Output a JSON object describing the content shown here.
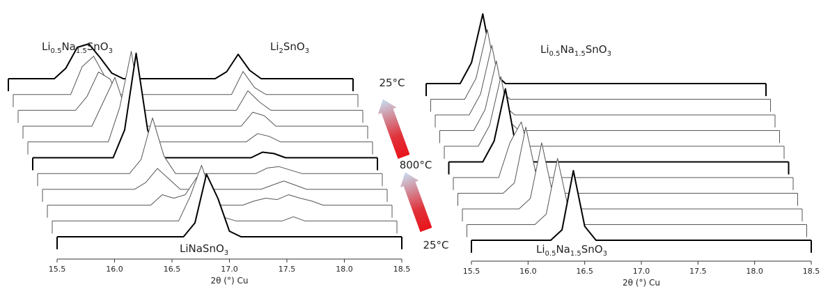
{
  "chart_data": [
    {
      "type": "waterfall",
      "x": [
        15.5,
        15.6,
        15.7,
        15.8,
        15.9,
        16.0,
        16.1,
        16.2,
        16.3,
        16.4,
        16.5,
        16.6,
        16.7,
        16.8,
        16.9,
        17.0,
        17.1,
        17.2,
        17.3,
        17.4,
        17.5,
        17.6,
        17.7,
        17.8,
        17.9,
        18.0,
        18.1,
        18.2,
        18.3,
        18.4,
        18.5
      ],
      "xlim": [
        15.5,
        18.5
      ],
      "xticks": [
        15.5,
        {
          "value": 16,
          "label": "16.0"
        },
        16.5,
        {
          "value": 17,
          "label": "17.0"
        },
        17.5,
        {
          "value": 18,
          "label": "18.0"
        },
        18.5
      ],
      "x_label": "2θ (°) Cu",
      "series": [
        {
          "color": "#000000",
          "line_width": 2,
          "values": [
            0,
            0,
            0,
            0,
            0,
            0,
            0,
            0,
            0,
            0,
            0,
            0,
            20,
            90,
            55,
            8,
            0,
            0,
            0,
            0,
            0,
            0,
            0,
            0,
            0,
            0,
            0,
            0,
            0,
            0,
            0
          ]
        },
        {
          "color": "#555555",
          "line_width": 1,
          "values": [
            0,
            0,
            0,
            0,
            0,
            0,
            0,
            0,
            0,
            0,
            0,
            0,
            35,
            80,
            30,
            5,
            0,
            0,
            0,
            0,
            0,
            6,
            0,
            0,
            0,
            0,
            0,
            0,
            0,
            0,
            0
          ]
        },
        {
          "color": "#555555",
          "line_width": 1,
          "values": [
            0,
            0,
            0,
            0,
            0,
            0,
            0,
            0,
            0,
            0,
            15,
            10,
            15,
            40,
            15,
            0,
            0,
            0,
            6,
            10,
            8,
            15,
            10,
            6,
            0,
            0,
            0,
            0,
            0,
            0,
            0
          ]
        },
        {
          "color": "#555555",
          "line_width": 1,
          "values": [
            0,
            0,
            0,
            0,
            0,
            0,
            0,
            0,
            0,
            10,
            30,
            15,
            0,
            0,
            0,
            0,
            0,
            0,
            0,
            0,
            6,
            12,
            6,
            0,
            0,
            0,
            0,
            0,
            0,
            0,
            0
          ]
        },
        {
          "color": "#555555",
          "line_width": 1,
          "values": [
            0,
            0,
            0,
            0,
            0,
            0,
            0,
            0,
            0,
            20,
            80,
            25,
            0,
            0,
            0,
            0,
            0,
            0,
            0,
            0,
            8,
            10,
            5,
            0,
            0,
            0,
            0,
            0,
            0,
            0,
            0
          ]
        },
        {
          "color": "#000000",
          "line_width": 2,
          "values": [
            0,
            0,
            0,
            0,
            0,
            0,
            0,
            0,
            40,
            150,
            40,
            0,
            0,
            0,
            0,
            0,
            0,
            0,
            0,
            0,
            8,
            6,
            0,
            0,
            0,
            0,
            0,
            0,
            0,
            0,
            0
          ]
        },
        {
          "color": "#555555",
          "line_width": 1,
          "values": [
            0,
            0,
            0,
            0,
            0,
            0,
            0,
            0,
            50,
            130,
            30,
            0,
            0,
            0,
            0,
            0,
            0,
            0,
            0,
            0,
            12,
            8,
            0,
            0,
            0,
            0,
            0,
            0,
            0,
            0,
            0
          ]
        },
        {
          "color": "#555555",
          "line_width": 1,
          "values": [
            0,
            0,
            0,
            0,
            0,
            0,
            0,
            35,
            70,
            20,
            0,
            0,
            0,
            0,
            0,
            0,
            0,
            0,
            0,
            0,
            20,
            15,
            0,
            0,
            0,
            0,
            0,
            0,
            0,
            0,
            0
          ]
        },
        {
          "color": "#555555",
          "line_width": 1,
          "values": [
            0,
            0,
            0,
            0,
            0,
            0,
            20,
            55,
            45,
            10,
            0,
            0,
            0,
            0,
            0,
            0,
            0,
            0,
            0,
            0,
            28,
            12,
            0,
            0,
            0,
            0,
            0,
            0,
            0,
            0,
            0
          ]
        },
        {
          "color": "#555555",
          "line_width": 1,
          "values": [
            0,
            0,
            0,
            0,
            0,
            0,
            40,
            55,
            25,
            0,
            0,
            0,
            0,
            0,
            0,
            0,
            0,
            0,
            0,
            0,
            33,
            10,
            0,
            0,
            0,
            0,
            0,
            0,
            0,
            0,
            0
          ]
        },
        {
          "color": "#000000",
          "line_width": 2,
          "values": [
            0,
            0,
            0,
            0,
            0,
            15,
            45,
            50,
            30,
            8,
            0,
            0,
            0,
            0,
            0,
            0,
            0,
            0,
            0,
            10,
            35,
            12,
            0,
            0,
            0,
            0,
            0,
            0,
            0,
            0,
            0
          ]
        }
      ],
      "annotations": [
        {
          "segments": [
            "Li",
            "0.5",
            "Na",
            "1.5",
            "SnO",
            "3"
          ]
        },
        {
          "segments": [
            "Li",
            "2",
            "SnO",
            "3"
          ]
        },
        {
          "segments": [
            "LiNaSnO",
            "3"
          ]
        }
      ]
    },
    {
      "type": "waterfall",
      "x": [
        15.5,
        15.6,
        15.7,
        15.8,
        15.9,
        16.0,
        16.1,
        16.2,
        16.3,
        16.4,
        16.5,
        16.6,
        16.7,
        16.8,
        16.9,
        17.0,
        17.1,
        17.2,
        17.3,
        17.4,
        17.5,
        17.6,
        17.7,
        17.8,
        17.9,
        18.0,
        18.1,
        18.2,
        18.3,
        18.4,
        18.5
      ],
      "xlim": [
        15.5,
        18.5
      ],
      "xticks": [
        15.5,
        {
          "value": 16,
          "label": "16.0"
        },
        16.5,
        {
          "value": 17,
          "label": "17.0"
        },
        17.5,
        {
          "value": 18,
          "label": "18.0"
        },
        18.5
      ],
      "x_label": "2θ (°) Cu",
      "series": [
        {
          "color": "#000000",
          "line_width": 2,
          "values": [
            0,
            0,
            0,
            0,
            0,
            0,
            0,
            0,
            15,
            100,
            20,
            0,
            0,
            0,
            0,
            0,
            0,
            0,
            0,
            0,
            0,
            0,
            0,
            0,
            0,
            0,
            0,
            0,
            0,
            0,
            0
          ]
        },
        {
          "color": "#555555",
          "line_width": 1,
          "values": [
            0,
            0,
            0,
            0,
            0,
            0,
            0,
            15,
            95,
            20,
            0,
            0,
            0,
            0,
            0,
            0,
            0,
            0,
            0,
            0,
            0,
            0,
            0,
            0,
            0,
            0,
            0,
            0,
            0,
            0,
            0
          ]
        },
        {
          "color": "#555555",
          "line_width": 1,
          "values": [
            0,
            0,
            0,
            0,
            0,
            0,
            15,
            95,
            20,
            0,
            0,
            0,
            0,
            0,
            0,
            0,
            0,
            0,
            0,
            0,
            0,
            0,
            0,
            0,
            0,
            0,
            0,
            0,
            0,
            0,
            0
          ]
        },
        {
          "color": "#555555",
          "line_width": 1,
          "values": [
            0,
            0,
            0,
            0,
            0,
            15,
            95,
            20,
            0,
            0,
            0,
            0,
            0,
            0,
            0,
            0,
            0,
            0,
            0,
            0,
            0,
            0,
            0,
            0,
            0,
            0,
            0,
            0,
            0,
            0,
            0
          ]
        },
        {
          "color": "#555555",
          "line_width": 1,
          "values": [
            0,
            0,
            0,
            0,
            0,
            50,
            80,
            15,
            0,
            0,
            0,
            0,
            0,
            0,
            0,
            0,
            0,
            0,
            0,
            0,
            0,
            0,
            0,
            0,
            0,
            0,
            0,
            0,
            0,
            0,
            0
          ]
        },
        {
          "color": "#000000",
          "line_width": 2,
          "values": [
            0,
            0,
            0,
            0,
            30,
            105,
            15,
            0,
            0,
            0,
            0,
            0,
            0,
            0,
            0,
            0,
            0,
            0,
            0,
            0,
            0,
            0,
            0,
            0,
            0,
            0,
            0,
            0,
            0,
            0,
            0
          ]
        },
        {
          "color": "#555555",
          "line_width": 1,
          "values": [
            0,
            0,
            0,
            0,
            30,
            100,
            15,
            0,
            0,
            0,
            0,
            0,
            0,
            0,
            0,
            0,
            0,
            0,
            0,
            0,
            0,
            0,
            0,
            0,
            0,
            0,
            0,
            0,
            0,
            0,
            0
          ]
        },
        {
          "color": "#555555",
          "line_width": 1,
          "values": [
            0,
            0,
            0,
            0,
            30,
            100,
            15,
            0,
            0,
            0,
            0,
            0,
            0,
            0,
            0,
            0,
            0,
            0,
            0,
            0,
            0,
            0,
            0,
            0,
            0,
            0,
            0,
            0,
            0,
            0,
            0
          ]
        },
        {
          "color": "#555555",
          "line_width": 1,
          "values": [
            0,
            0,
            0,
            0,
            30,
            100,
            15,
            0,
            0,
            0,
            0,
            0,
            0,
            0,
            0,
            0,
            0,
            0,
            0,
            0,
            0,
            0,
            0,
            0,
            0,
            0,
            0,
            0,
            0,
            0,
            0
          ]
        },
        {
          "color": "#555555",
          "line_width": 1,
          "values": [
            0,
            0,
            0,
            0,
            30,
            100,
            15,
            0,
            0,
            0,
            0,
            0,
            0,
            0,
            0,
            0,
            0,
            0,
            0,
            0,
            0,
            0,
            0,
            0,
            0,
            0,
            0,
            0,
            0,
            0,
            0
          ]
        },
        {
          "color": "#000000",
          "line_width": 2,
          "values": [
            0,
            0,
            0,
            0,
            30,
            100,
            15,
            0,
            0,
            0,
            0,
            0,
            0,
            0,
            0,
            0,
            0,
            0,
            0,
            0,
            0,
            0,
            0,
            0,
            0,
            0,
            0,
            0,
            0,
            0,
            0
          ]
        }
      ],
      "annotations": [
        {
          "segments": [
            "Li",
            "0.5",
            "Na",
            "1.5",
            "SnO",
            "3"
          ]
        },
        {
          "segments": [
            "Li",
            "0.5",
            "Na",
            "1.5",
            "SnO",
            "3"
          ]
        }
      ]
    }
  ],
  "temperature_labels": [
    "25°C",
    "800°C",
    "25°C"
  ]
}
